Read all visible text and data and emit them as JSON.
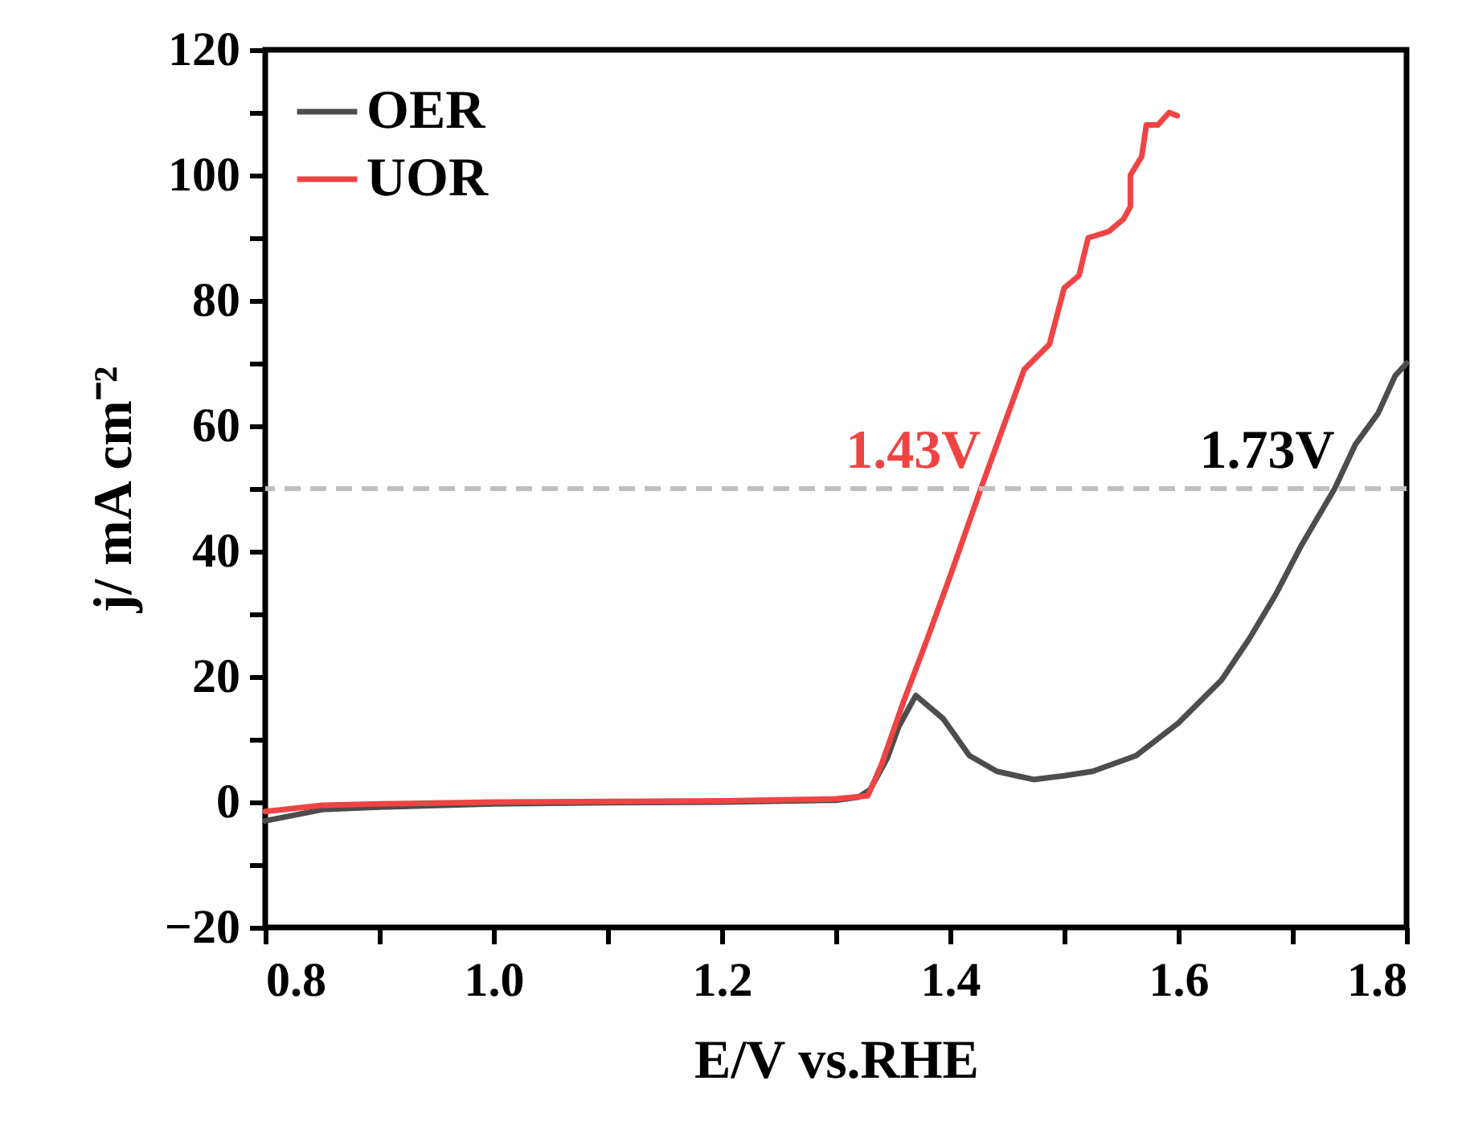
{
  "chart_data": {
    "type": "line",
    "xlabel": "E/V vs.RHE",
    "ylabel": "j/ mA cm⁻²",
    "xlim": [
      0.8,
      1.8
    ],
    "ylim": [
      -20,
      120
    ],
    "xticks": [
      0.8,
      {
        "value": 0.9,
        "label": null
      },
      {
        "value": 1.0,
        "label": "1.0"
      },
      {
        "value": 1.1,
        "label": null
      },
      1.2,
      {
        "value": 1.3,
        "label": null
      },
      1.4,
      {
        "value": 1.5,
        "label": null
      },
      1.6,
      {
        "value": 1.7,
        "label": null
      },
      1.8
    ],
    "yticks": [
      -20,
      {
        "value": -10,
        "label": null
      },
      0,
      {
        "value": 10,
        "label": null
      },
      20,
      {
        "value": 30,
        "label": null
      },
      40,
      {
        "value": 50,
        "label": null
      },
      60,
      {
        "value": 70,
        "label": null
      },
      80,
      {
        "value": 90,
        "label": null
      },
      100,
      {
        "value": 110,
        "label": null
      },
      120
    ],
    "legend": "top left",
    "grid": false,
    "line_style": "solid",
    "marker": "none",
    "series": [
      {
        "name": "OER",
        "color": "#4d4d4d",
        "x": [
          0.8,
          0.85,
          0.9,
          1.0,
          1.1,
          1.2,
          1.3,
          1.32,
          1.33,
          1.345,
          1.355,
          1.37,
          1.394,
          1.417,
          1.441,
          1.473,
          1.5,
          1.525,
          1.563,
          1.6,
          1.638,
          1.662,
          1.685,
          1.708,
          1.737,
          1.755,
          1.775,
          1.79,
          1.8
        ],
        "values": [
          -3,
          -1.2,
          -0.8,
          -0.3,
          -0.1,
          0,
          0.3,
          0.8,
          2,
          7,
          12,
          17,
          13.3,
          7.4,
          4.9,
          3.6,
          4.2,
          4.9,
          7.4,
          12.6,
          19.5,
          26,
          33,
          41,
          50,
          57,
          62,
          68,
          70
        ]
      },
      {
        "name": "UOR",
        "color": "#ef4444",
        "x": [
          0.8,
          0.85,
          0.9,
          1.0,
          1.1,
          1.2,
          1.3,
          1.328,
          1.34,
          1.359,
          1.38,
          1.4,
          1.427,
          1.445,
          1.465,
          1.487,
          1.5,
          1.513,
          1.521,
          1.539,
          1.552,
          1.558,
          1.558,
          1.568,
          1.572,
          1.582,
          1.592,
          1.599
        ],
        "values": [
          -1.5,
          -0.5,
          -0.3,
          0,
          0.1,
          0.2,
          0.5,
          1,
          6,
          15.9,
          26,
          36,
          50,
          59,
          69,
          73,
          82,
          84,
          90,
          91,
          93,
          95,
          100,
          103,
          108,
          108,
          110,
          109.5
        ]
      }
    ],
    "ref_lines": [
      {
        "axis": "y",
        "value": 50,
        "color": "#bfbfbf",
        "line_style": "dashed"
      }
    ],
    "annotations": [
      {
        "text": "1.73V",
        "x": 1.737,
        "y": 50
      },
      {
        "text": "1.43V",
        "x": 1.427,
        "y": 50
      }
    ]
  }
}
